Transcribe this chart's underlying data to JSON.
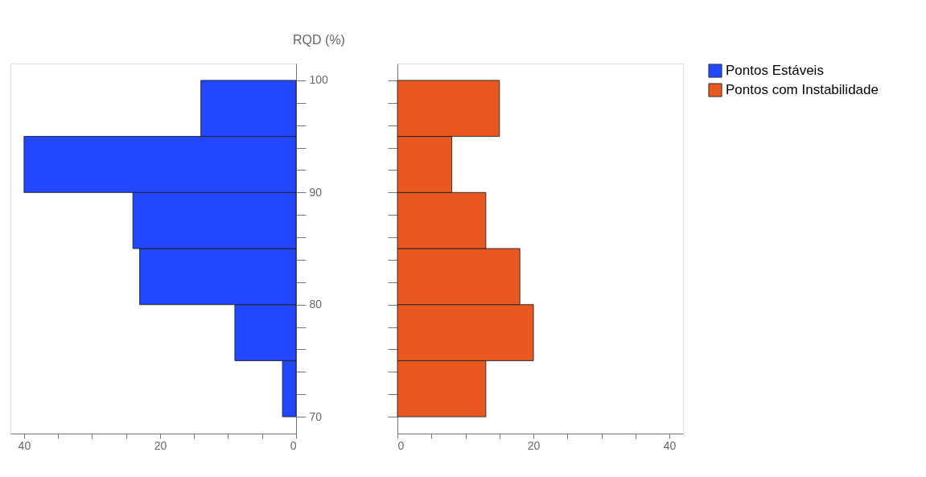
{
  "chart_data": [
    {
      "type": "histogram",
      "orientation": "horizontal",
      "ylabel": "RQD (%)",
      "bins": [
        70,
        75,
        80,
        85,
        90,
        95,
        100
      ],
      "series": [
        {
          "name": "Pontos Estáveis",
          "color": "#2346ff",
          "values": [
            2,
            9,
            23,
            24,
            40,
            14
          ]
        }
      ],
      "xlim": [
        42,
        0
      ],
      "xticks": [
        {
          "value": 40,
          "label": "40"
        },
        {
          "value": 35,
          "label": null
        },
        {
          "value": 30,
          "label": null
        },
        {
          "value": 25,
          "label": null
        },
        {
          "value": 20,
          "label": "20"
        },
        {
          "value": 15,
          "label": null
        },
        {
          "value": 10,
          "label": null
        },
        {
          "value": 5,
          "label": null
        },
        0
      ],
      "ylim": [
        68.5,
        101.5
      ],
      "yticks": [
        70,
        {
          "value": 72,
          "label": null
        },
        {
          "value": 74,
          "label": null
        },
        {
          "value": 76,
          "label": null
        },
        {
          "value": 78,
          "label": null
        },
        80,
        {
          "value": 82,
          "label": null
        },
        {
          "value": 84,
          "label": null
        },
        {
          "value": 86,
          "label": null
        },
        {
          "value": 88,
          "label": null
        },
        90,
        {
          "value": 92,
          "label": null
        },
        {
          "value": 94,
          "label": null
        },
        {
          "value": 96,
          "label": null
        },
        {
          "value": 98,
          "label": null
        },
        100
      ],
      "grid": false,
      "legend": "right"
    },
    {
      "type": "histogram",
      "orientation": "horizontal",
      "bins": [
        70,
        75,
        80,
        85,
        90,
        95,
        100
      ],
      "series": [
        {
          "name": "Pontos com Instabilidade",
          "color": "#e85820",
          "values": [
            13,
            20,
            18,
            13,
            8,
            15
          ]
        }
      ],
      "xlim": [
        0,
        42
      ],
      "xticks": [
        0,
        {
          "value": 5,
          "label": null
        },
        {
          "value": 10,
          "label": null
        },
        {
          "value": 15,
          "label": null
        },
        20,
        {
          "value": 25,
          "label": null
        },
        {
          "value": 30,
          "label": null
        },
        {
          "value": 35,
          "label": null
        },
        40
      ],
      "ylim": [
        68.5,
        101.5
      ],
      "yticks": [
        70,
        {
          "value": 72,
          "label": null
        },
        {
          "value": 74,
          "label": null
        },
        {
          "value": 76,
          "label": null
        },
        {
          "value": 78,
          "label": null
        },
        80,
        {
          "value": 82,
          "label": null
        },
        {
          "value": 84,
          "label": null
        },
        {
          "value": 86,
          "label": null
        },
        {
          "value": 88,
          "label": null
        },
        90,
        {
          "value": 92,
          "label": null
        },
        {
          "value": 94,
          "label": null
        },
        {
          "value": 96,
          "label": null
        },
        {
          "value": 98,
          "label": null
        },
        100
      ],
      "grid": false,
      "legend": "right",
      "tick_labels": "x"
    }
  ]
}
